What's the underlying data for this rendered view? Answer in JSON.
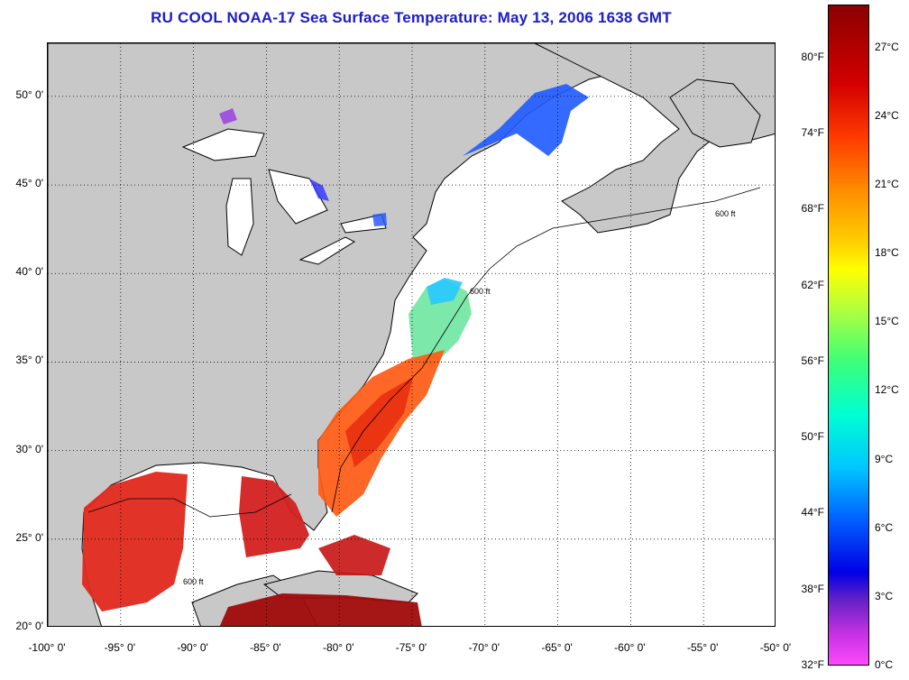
{
  "title": "RU COOL  NOAA-17  Sea Surface Temperature:  May 13, 2006 1638 GMT",
  "map": {
    "lon_range": [
      -100,
      -50
    ],
    "lat_range": [
      20,
      53
    ],
    "grid": "dotted",
    "colors": {
      "land": "#c8c8c8",
      "no_data": "#ffffff",
      "coast": "#000000",
      "frame": "#000000"
    },
    "lat_ticks": [
      {
        "value": 50,
        "label": "50° 0'"
      },
      {
        "value": 45,
        "label": "45° 0'"
      },
      {
        "value": 40,
        "label": "40° 0'"
      },
      {
        "value": 35,
        "label": "35° 0'"
      },
      {
        "value": 30,
        "label": "30° 0'"
      },
      {
        "value": 25,
        "label": "25° 0'"
      },
      {
        "value": 20,
        "label": "20° 0'"
      }
    ],
    "lon_ticks": [
      {
        "value": -100,
        "label": "-100° 0'"
      },
      {
        "value": -95,
        "label": "-95° 0'"
      },
      {
        "value": -90,
        "label": "-90° 0'"
      },
      {
        "value": -85,
        "label": "-85° 0'"
      },
      {
        "value": -80,
        "label": "-80° 0'"
      },
      {
        "value": -75,
        "label": "-75° 0'"
      },
      {
        "value": -70,
        "label": "-70° 0'"
      },
      {
        "value": -65,
        "label": "-65° 0'"
      },
      {
        "value": -60,
        "label": "-60° 0'"
      },
      {
        "value": -55,
        "label": "-55° 0'"
      },
      {
        "value": -50,
        "label": "-50° 0'"
      }
    ],
    "contour_label": "600 ft"
  },
  "colorbar": {
    "celsius_labels": [
      "27°C",
      "24°C",
      "21°C",
      "18°C",
      "15°C",
      "12°C",
      "9°C",
      "6°C",
      "3°C",
      "0°C"
    ],
    "fahrenheit_labels": [
      "80°F",
      "74°F",
      "68°F",
      "62°F",
      "56°F",
      "50°F",
      "44°F",
      "38°F",
      "32°F"
    ]
  }
}
